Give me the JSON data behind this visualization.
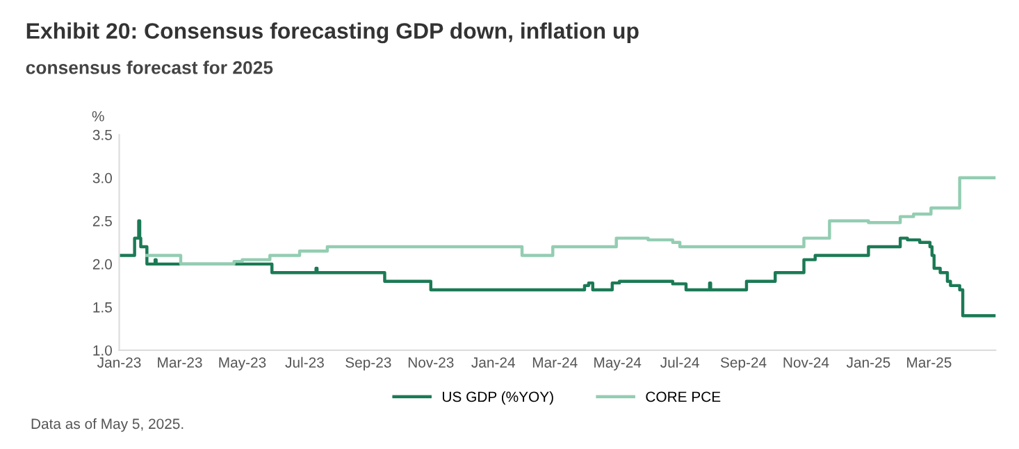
{
  "chart_data": {
    "type": "step",
    "title": "Exhibit 20: Consensus forecasting GDP down, inflation up",
    "subtitle": "consensus forecast for 2025",
    "ylabel": "%",
    "annotations": [
      "Data as of May 5, 2025."
    ],
    "xlim": [
      "2023-01-01",
      "2025-05-05"
    ],
    "xticks": [
      {
        "value": "2023-01-01",
        "label": "Jan-23"
      },
      {
        "value": "2023-03-01",
        "label": "Mar-23"
      },
      {
        "value": "2023-05-01",
        "label": "May-23"
      },
      {
        "value": "2023-07-01",
        "label": "Jul-23"
      },
      {
        "value": "2023-09-01",
        "label": "Sep-23"
      },
      {
        "value": "2023-11-01",
        "label": "Nov-23"
      },
      {
        "value": "2024-01-01",
        "label": "Jan-24"
      },
      {
        "value": "2024-03-01",
        "label": "Mar-24"
      },
      {
        "value": "2024-05-01",
        "label": "May-24"
      },
      {
        "value": "2024-07-01",
        "label": "Jul-24"
      },
      {
        "value": "2024-09-01",
        "label": "Sep-24"
      },
      {
        "value": "2024-11-01",
        "label": "Nov-24"
      },
      {
        "value": "2025-01-01",
        "label": "Jan-25"
      },
      {
        "value": "2025-03-01",
        "label": "Mar-25"
      }
    ],
    "ylim": [
      1.0,
      3.5
    ],
    "yticks": [
      {
        "value": 1.0,
        "label": "1.0"
      },
      {
        "value": 1.5,
        "label": "1.5"
      },
      {
        "value": 2.0,
        "label": "2.0"
      },
      {
        "value": 2.5,
        "label": "2.5"
      },
      {
        "value": 3.0,
        "label": "3.0"
      },
      {
        "value": 3.5,
        "label": "3.5"
      }
    ],
    "grid": false,
    "legend": "bottom",
    "series": [
      {
        "name": "US GDP (%YOY)",
        "color": "#1b7a55",
        "x": [
          "2023-01-01",
          "2023-01-16",
          "2023-01-20",
          "2023-01-21",
          "2023-01-22",
          "2023-01-24",
          "2023-01-28",
          "2023-02-05",
          "2023-02-06",
          "2023-05-30",
          "2023-07-12",
          "2023-07-13",
          "2023-09-17",
          "2023-11-01",
          "2024-03-30",
          "2024-04-03",
          "2024-04-07",
          "2024-04-26",
          "2024-05-03",
          "2024-06-24",
          "2024-07-07",
          "2024-07-30",
          "2024-07-31",
          "2024-09-04",
          "2024-10-02",
          "2024-10-30",
          "2024-11-01",
          "2024-11-10",
          "2025-01-01",
          "2025-02-01",
          "2025-02-08",
          "2025-02-20",
          "2025-03-02",
          "2025-03-04",
          "2025-03-06",
          "2025-03-12",
          "2025-03-19",
          "2025-03-22",
          "2025-03-31",
          "2025-04-03",
          "2025-05-05"
        ],
        "values": [
          2.1,
          2.3,
          2.5,
          2.3,
          2.2,
          2.2,
          2.0,
          2.05,
          2.0,
          1.9,
          1.95,
          1.9,
          1.8,
          1.7,
          1.75,
          1.78,
          1.7,
          1.78,
          1.8,
          1.77,
          1.7,
          1.78,
          1.7,
          1.8,
          1.9,
          2.05,
          2.05,
          2.1,
          2.2,
          2.3,
          2.28,
          2.25,
          2.2,
          2.1,
          1.95,
          1.9,
          1.8,
          1.75,
          1.7,
          1.4,
          1.4
        ]
      },
      {
        "name": "CORE PCE",
        "color": "#93cdb2",
        "x": [
          "2023-01-28",
          "2023-03-02",
          "2023-04-23",
          "2023-05-01",
          "2023-05-28",
          "2023-06-26",
          "2023-07-23",
          "2024-01-29",
          "2024-02-28",
          "2024-04-30",
          "2024-05-31",
          "2024-06-24",
          "2024-07-01",
          "2024-10-30",
          "2024-11-24",
          "2025-01-01",
          "2025-02-01",
          "2025-02-14",
          "2025-03-03",
          "2025-03-31",
          "2025-05-05"
        ],
        "values": [
          2.1,
          2.0,
          2.03,
          2.05,
          2.1,
          2.15,
          2.2,
          2.1,
          2.2,
          2.3,
          2.28,
          2.25,
          2.2,
          2.3,
          2.5,
          2.48,
          2.55,
          2.58,
          2.65,
          3.0,
          3.0
        ]
      }
    ]
  }
}
